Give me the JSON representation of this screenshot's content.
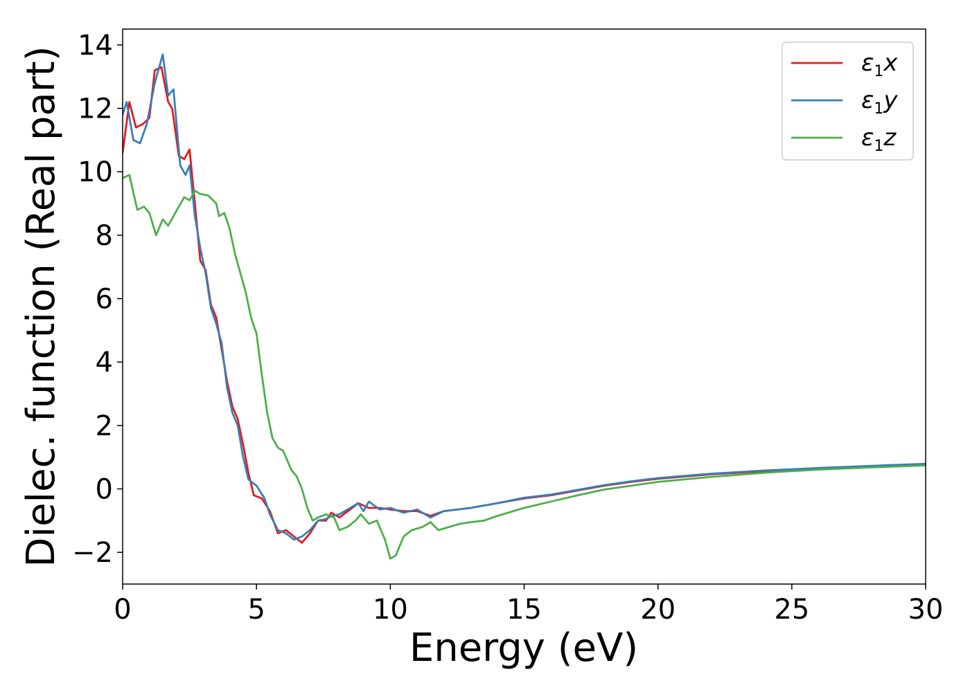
{
  "chart_data": {
    "type": "line",
    "xlabel": "Energy (eV)",
    "ylabel": "Dielec. function (Real part)",
    "xlim": [
      0,
      30
    ],
    "ylim": [
      -3,
      14.5
    ],
    "xticks": [
      0,
      5,
      10,
      15,
      20,
      25,
      30
    ],
    "yticks": [
      -2,
      0,
      2,
      4,
      6,
      8,
      10,
      12,
      14
    ],
    "xtick_labels": [
      "0",
      "5",
      "10",
      "15",
      "20",
      "25",
      "30"
    ],
    "ytick_labels": [
      "−2",
      "0",
      "2",
      "4",
      "6",
      "8",
      "10",
      "12",
      "14"
    ],
    "grid": false,
    "legend_position": "top-right",
    "series": [
      {
        "name": "ε₁x",
        "legend_base": "ε",
        "legend_sub": "1",
        "legend_var": "x",
        "color": "#e41a1c",
        "points": [
          [
            0,
            10.6
          ],
          [
            0.25,
            12.2
          ],
          [
            0.5,
            11.4
          ],
          [
            0.75,
            11.5
          ],
          [
            1.0,
            11.7
          ],
          [
            1.2,
            13.2
          ],
          [
            1.45,
            13.3
          ],
          [
            1.7,
            12.2
          ],
          [
            1.85,
            12.0
          ],
          [
            2.1,
            10.5
          ],
          [
            2.3,
            10.4
          ],
          [
            2.5,
            10.7
          ],
          [
            2.7,
            9.0
          ],
          [
            2.9,
            7.2
          ],
          [
            3.1,
            6.9
          ],
          [
            3.3,
            5.8
          ],
          [
            3.5,
            5.4
          ],
          [
            3.7,
            4.4
          ],
          [
            3.9,
            3.4
          ],
          [
            4.1,
            2.6
          ],
          [
            4.3,
            2.2
          ],
          [
            4.5,
            1.4
          ],
          [
            4.7,
            0.5
          ],
          [
            4.9,
            -0.2
          ],
          [
            5.2,
            -0.3
          ],
          [
            5.5,
            -0.7
          ],
          [
            5.8,
            -1.4
          ],
          [
            6.1,
            -1.3
          ],
          [
            6.4,
            -1.5
          ],
          [
            6.7,
            -1.7
          ],
          [
            7.0,
            -1.4
          ],
          [
            7.3,
            -1.0
          ],
          [
            7.6,
            -1.0
          ],
          [
            7.8,
            -0.75
          ],
          [
            8.1,
            -0.9
          ],
          [
            8.5,
            -0.65
          ],
          [
            8.8,
            -0.45
          ],
          [
            9.2,
            -0.6
          ],
          [
            9.6,
            -0.6
          ],
          [
            10.0,
            -0.65
          ],
          [
            10.5,
            -0.7
          ],
          [
            11.0,
            -0.7
          ],
          [
            11.5,
            -0.85
          ],
          [
            12.0,
            -0.7
          ],
          [
            13.0,
            -0.6
          ],
          [
            14.0,
            -0.45
          ],
          [
            15.0,
            -0.3
          ],
          [
            16.0,
            -0.2
          ],
          [
            17.0,
            -0.05
          ],
          [
            18.0,
            0.1
          ],
          [
            19.0,
            0.22
          ],
          [
            20.0,
            0.32
          ],
          [
            22.0,
            0.46
          ],
          [
            24.0,
            0.56
          ],
          [
            26.0,
            0.64
          ],
          [
            28.0,
            0.71
          ],
          [
            30.0,
            0.77
          ]
        ]
      },
      {
        "name": "ε₁y",
        "legend_base": "ε",
        "legend_sub": "1",
        "legend_var": "y",
        "color": "#377eb8",
        "points": [
          [
            0,
            11.8
          ],
          [
            0.15,
            12.2
          ],
          [
            0.4,
            11.0
          ],
          [
            0.65,
            10.9
          ],
          [
            0.9,
            11.5
          ],
          [
            1.2,
            12.8
          ],
          [
            1.5,
            13.7
          ],
          [
            1.7,
            12.4
          ],
          [
            1.9,
            12.6
          ],
          [
            2.15,
            10.2
          ],
          [
            2.35,
            9.9
          ],
          [
            2.5,
            10.2
          ],
          [
            2.7,
            8.6
          ],
          [
            2.9,
            7.6
          ],
          [
            3.1,
            6.8
          ],
          [
            3.3,
            5.7
          ],
          [
            3.5,
            5.2
          ],
          [
            3.7,
            4.6
          ],
          [
            3.9,
            3.2
          ],
          [
            4.1,
            2.4
          ],
          [
            4.3,
            2.0
          ],
          [
            4.5,
            1.0
          ],
          [
            4.7,
            0.3
          ],
          [
            5.0,
            0.1
          ],
          [
            5.3,
            -0.3
          ],
          [
            5.5,
            -0.8
          ],
          [
            5.8,
            -1.3
          ],
          [
            6.1,
            -1.4
          ],
          [
            6.4,
            -1.6
          ],
          [
            6.7,
            -1.5
          ],
          [
            7.0,
            -1.3
          ],
          [
            7.3,
            -1.0
          ],
          [
            7.6,
            -0.95
          ],
          [
            7.8,
            -0.85
          ],
          [
            8.1,
            -0.8
          ],
          [
            8.5,
            -0.6
          ],
          [
            8.8,
            -0.45
          ],
          [
            9.0,
            -0.7
          ],
          [
            9.2,
            -0.4
          ],
          [
            9.6,
            -0.65
          ],
          [
            10.0,
            -0.6
          ],
          [
            10.5,
            -0.75
          ],
          [
            11.0,
            -0.65
          ],
          [
            11.5,
            -0.9
          ],
          [
            12.0,
            -0.7
          ],
          [
            13.0,
            -0.6
          ],
          [
            14.0,
            -0.45
          ],
          [
            15.0,
            -0.28
          ],
          [
            16.0,
            -0.18
          ],
          [
            17.0,
            -0.03
          ],
          [
            18.0,
            0.12
          ],
          [
            19.0,
            0.24
          ],
          [
            20.0,
            0.34
          ],
          [
            22.0,
            0.48
          ],
          [
            24.0,
            0.58
          ],
          [
            26.0,
            0.66
          ],
          [
            28.0,
            0.73
          ],
          [
            30.0,
            0.79
          ]
        ]
      },
      {
        "name": "ε₁z",
        "legend_base": "ε",
        "legend_sub": "1",
        "legend_var": "z",
        "color": "#4daf4a",
        "points": [
          [
            0,
            9.8
          ],
          [
            0.25,
            9.9
          ],
          [
            0.55,
            8.8
          ],
          [
            0.8,
            8.9
          ],
          [
            1.0,
            8.7
          ],
          [
            1.25,
            8.0
          ],
          [
            1.5,
            8.5
          ],
          [
            1.7,
            8.3
          ],
          [
            1.9,
            8.6
          ],
          [
            2.1,
            8.9
          ],
          [
            2.3,
            9.2
          ],
          [
            2.5,
            9.1
          ],
          [
            2.7,
            9.4
          ],
          [
            2.9,
            9.3
          ],
          [
            3.2,
            9.25
          ],
          [
            3.5,
            9.0
          ],
          [
            3.6,
            8.6
          ],
          [
            3.8,
            8.7
          ],
          [
            4.0,
            8.2
          ],
          [
            4.2,
            7.4
          ],
          [
            4.4,
            6.8
          ],
          [
            4.6,
            6.2
          ],
          [
            4.8,
            5.4
          ],
          [
            5.0,
            4.9
          ],
          [
            5.2,
            3.6
          ],
          [
            5.4,
            2.4
          ],
          [
            5.6,
            1.6
          ],
          [
            5.8,
            1.3
          ],
          [
            6.0,
            1.2
          ],
          [
            6.3,
            0.6
          ],
          [
            6.5,
            0.4
          ],
          [
            6.7,
            0.0
          ],
          [
            6.9,
            -0.6
          ],
          [
            7.1,
            -1.0
          ],
          [
            7.3,
            -0.9
          ],
          [
            7.6,
            -0.8
          ],
          [
            7.9,
            -0.9
          ],
          [
            8.1,
            -1.3
          ],
          [
            8.4,
            -1.2
          ],
          [
            8.7,
            -1.0
          ],
          [
            8.9,
            -0.8
          ],
          [
            9.2,
            -1.1
          ],
          [
            9.5,
            -1.0
          ],
          [
            9.8,
            -1.6
          ],
          [
            10.0,
            -2.2
          ],
          [
            10.2,
            -2.1
          ],
          [
            10.5,
            -1.5
          ],
          [
            10.8,
            -1.3
          ],
          [
            11.2,
            -1.2
          ],
          [
            11.5,
            -1.05
          ],
          [
            11.8,
            -1.3
          ],
          [
            12.2,
            -1.2
          ],
          [
            12.6,
            -1.1
          ],
          [
            13.0,
            -1.05
          ],
          [
            13.5,
            -1.0
          ],
          [
            14.0,
            -0.85
          ],
          [
            15.0,
            -0.6
          ],
          [
            16.0,
            -0.4
          ],
          [
            17.0,
            -0.2
          ],
          [
            18.0,
            -0.02
          ],
          [
            19.0,
            0.1
          ],
          [
            20.0,
            0.22
          ],
          [
            22.0,
            0.38
          ],
          [
            24.0,
            0.51
          ],
          [
            26.0,
            0.61
          ],
          [
            28.0,
            0.68
          ],
          [
            30.0,
            0.74
          ]
        ]
      }
    ]
  }
}
